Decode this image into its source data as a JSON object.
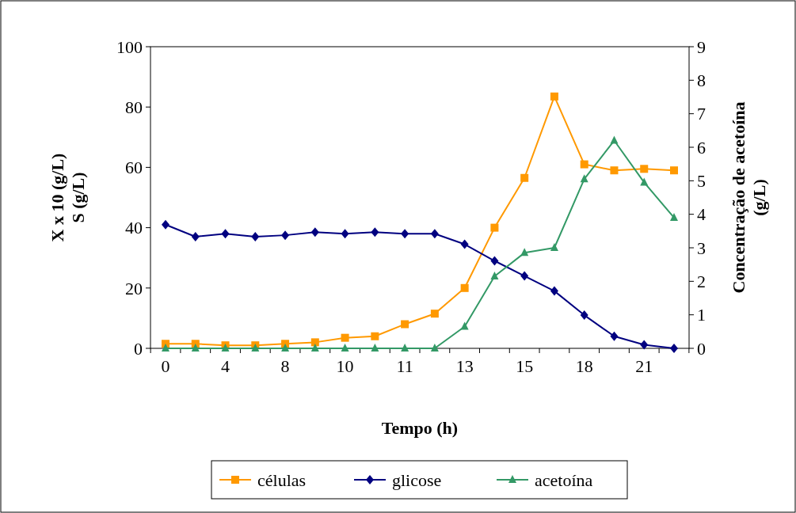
{
  "chart_data": {
    "type": "line",
    "xlabel": "Tempo (h)",
    "ylabel": "X x 10 (g/L)\nS (g/L)",
    "y2label": "Concentração de acetoína\n(g/L)",
    "categories": [
      "0",
      null,
      "4",
      null,
      "8",
      null,
      "10",
      null,
      "11",
      null,
      "13",
      null,
      "15",
      null,
      "18",
      null,
      "21",
      null
    ],
    "ylim": [
      0,
      100
    ],
    "yticks": [
      0,
      20,
      40,
      60,
      80,
      100
    ],
    "y2lim": [
      0,
      9
    ],
    "y2ticks": [
      0,
      1,
      2,
      3,
      4,
      5,
      6,
      7,
      8,
      9
    ],
    "grid": false,
    "legend": "bottom",
    "series": [
      {
        "name": "células",
        "color": "#ff9900",
        "marker": "square",
        "values": [
          1.5,
          1.5,
          1,
          1,
          1.5,
          2,
          3.5,
          4,
          8,
          11.5,
          20,
          40,
          56.5,
          83.5,
          61,
          59,
          59.5,
          59
        ]
      },
      {
        "name": "glicose",
        "color": "#000080",
        "marker": "diamond",
        "values": [
          41,
          37,
          38,
          37,
          37.5,
          38.5,
          38,
          38.5,
          38,
          38,
          34.5,
          29,
          24,
          19,
          11,
          4,
          1.2,
          0
        ]
      },
      {
        "name": "acetoína",
        "color": "#339966",
        "marker": "triangle",
        "axis": "y2",
        "values": [
          0,
          0,
          0,
          0,
          0,
          0,
          0,
          0,
          0,
          0,
          0.65,
          2.15,
          2.85,
          3,
          5.05,
          6.2,
          4.95,
          3.9
        ]
      }
    ]
  }
}
